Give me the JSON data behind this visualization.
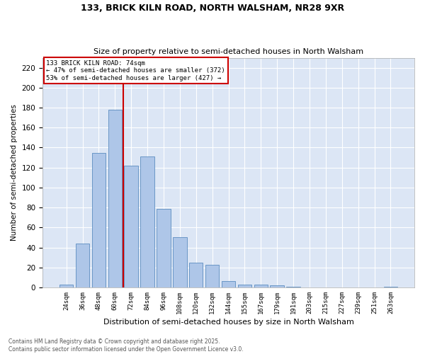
{
  "title1": "133, BRICK KILN ROAD, NORTH WALSHAM, NR28 9XR",
  "title2": "Size of property relative to semi-detached houses in North Walsham",
  "xlabel": "Distribution of semi-detached houses by size in North Walsham",
  "ylabel": "Number of semi-detached properties",
  "categories": [
    "24sqm",
    "36sqm",
    "48sqm",
    "60sqm",
    "72sqm",
    "84sqm",
    "96sqm",
    "108sqm",
    "120sqm",
    "132sqm",
    "144sqm",
    "155sqm",
    "167sqm",
    "179sqm",
    "191sqm",
    "203sqm",
    "215sqm",
    "227sqm",
    "239sqm",
    "251sqm",
    "263sqm"
  ],
  "values": [
    3,
    44,
    135,
    178,
    122,
    131,
    79,
    50,
    25,
    23,
    6,
    3,
    3,
    2,
    1,
    0,
    0,
    0,
    0,
    0,
    1
  ],
  "bar_color": "#aec6e8",
  "bar_edge_color": "#5b8dc0",
  "marker_label": "133 BRICK KILN ROAD: 74sqm",
  "pct_smaller": "47% of semi-detached houses are smaller (372)",
  "pct_larger": "53% of semi-detached houses are larger (427)",
  "vline_color": "#cc0000",
  "background_color": "#dce6f5",
  "grid_color": "#ffffff",
  "fig_bg_color": "#ffffff",
  "footer": "Contains HM Land Registry data © Crown copyright and database right 2025.\nContains public sector information licensed under the Open Government Licence v3.0.",
  "ylim": [
    0,
    230
  ],
  "yticks": [
    0,
    20,
    40,
    60,
    80,
    100,
    120,
    140,
    160,
    180,
    200,
    220
  ],
  "vline_index": 3.5
}
